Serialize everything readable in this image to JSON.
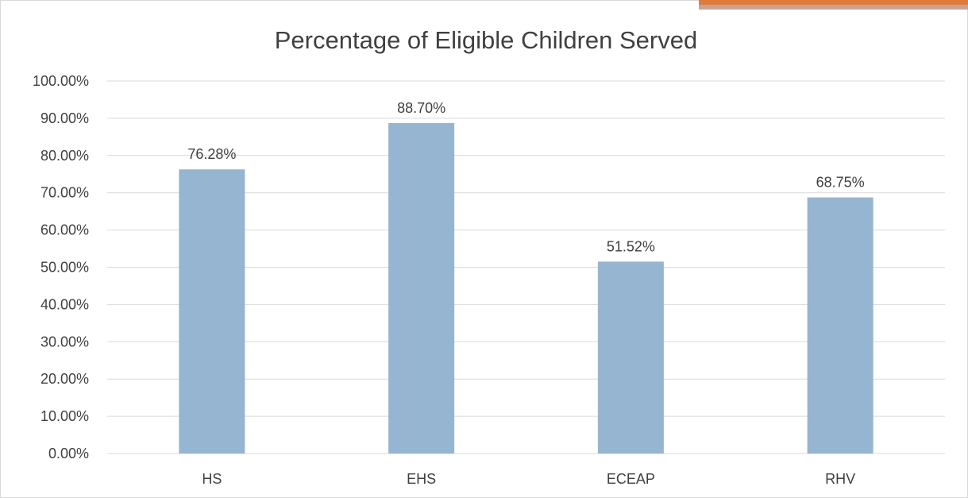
{
  "chart_data": {
    "type": "bar",
    "title": "Percentage of Eligible Children Served",
    "categories": [
      "HS",
      "EHS",
      "ECEAP",
      "RHV"
    ],
    "values": [
      76.28,
      88.7,
      51.52,
      68.75
    ],
    "data_labels": [
      "76.28%",
      "88.70%",
      "51.52%",
      "68.75%"
    ],
    "ylim": [
      0,
      100
    ],
    "y_ticks": [
      "0.00%",
      "10.00%",
      "20.00%",
      "30.00%",
      "40.00%",
      "50.00%",
      "60.00%",
      "70.00%",
      "80.00%",
      "90.00%",
      "100.00%"
    ],
    "xlabel": "",
    "ylabel": "",
    "grid": true,
    "legend": "none",
    "bar_color": "#95b5d1",
    "grid_color": "#d9d9d9",
    "text_color": "#404040",
    "accent_strip_colors": [
      "#e07b3c",
      "#c8a393"
    ]
  }
}
